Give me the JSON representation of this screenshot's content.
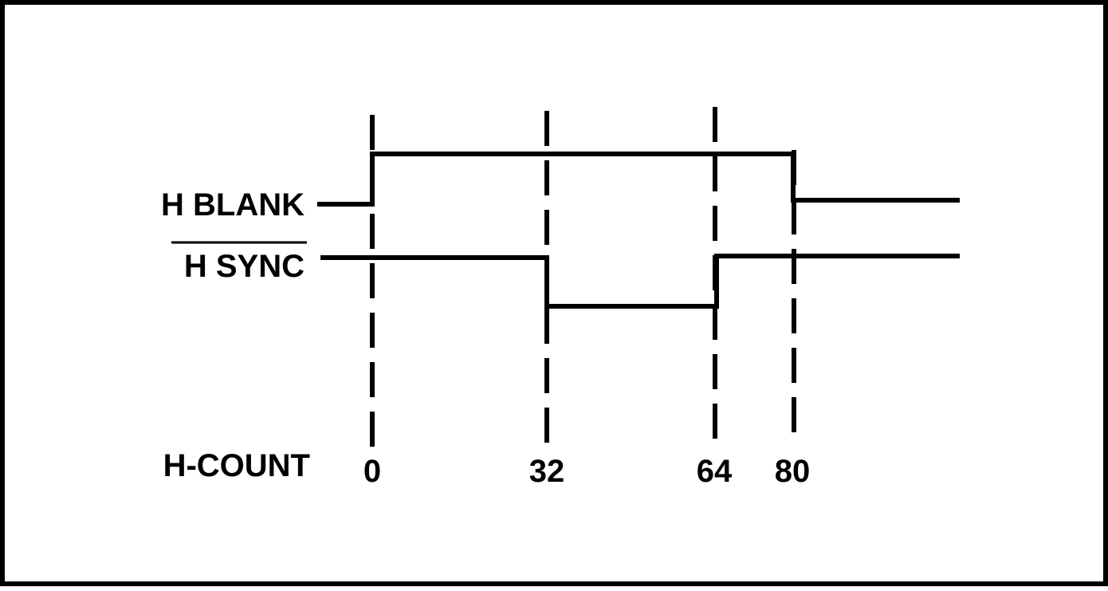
{
  "signals": [
    {
      "id": "h_blank",
      "label": "H BLANK",
      "active_low": false,
      "transitions": [
        0,
        80
      ],
      "initial_level": "low"
    },
    {
      "id": "h_sync",
      "label": "H SYNC",
      "active_low": true,
      "transitions": [
        32,
        64
      ],
      "initial_level": "high"
    }
  ],
  "counter": {
    "label": "H-COUNT",
    "ticks": [
      "0",
      "32",
      "64",
      "80"
    ]
  },
  "colors": {
    "line": "#000000",
    "background": "#ffffff"
  }
}
